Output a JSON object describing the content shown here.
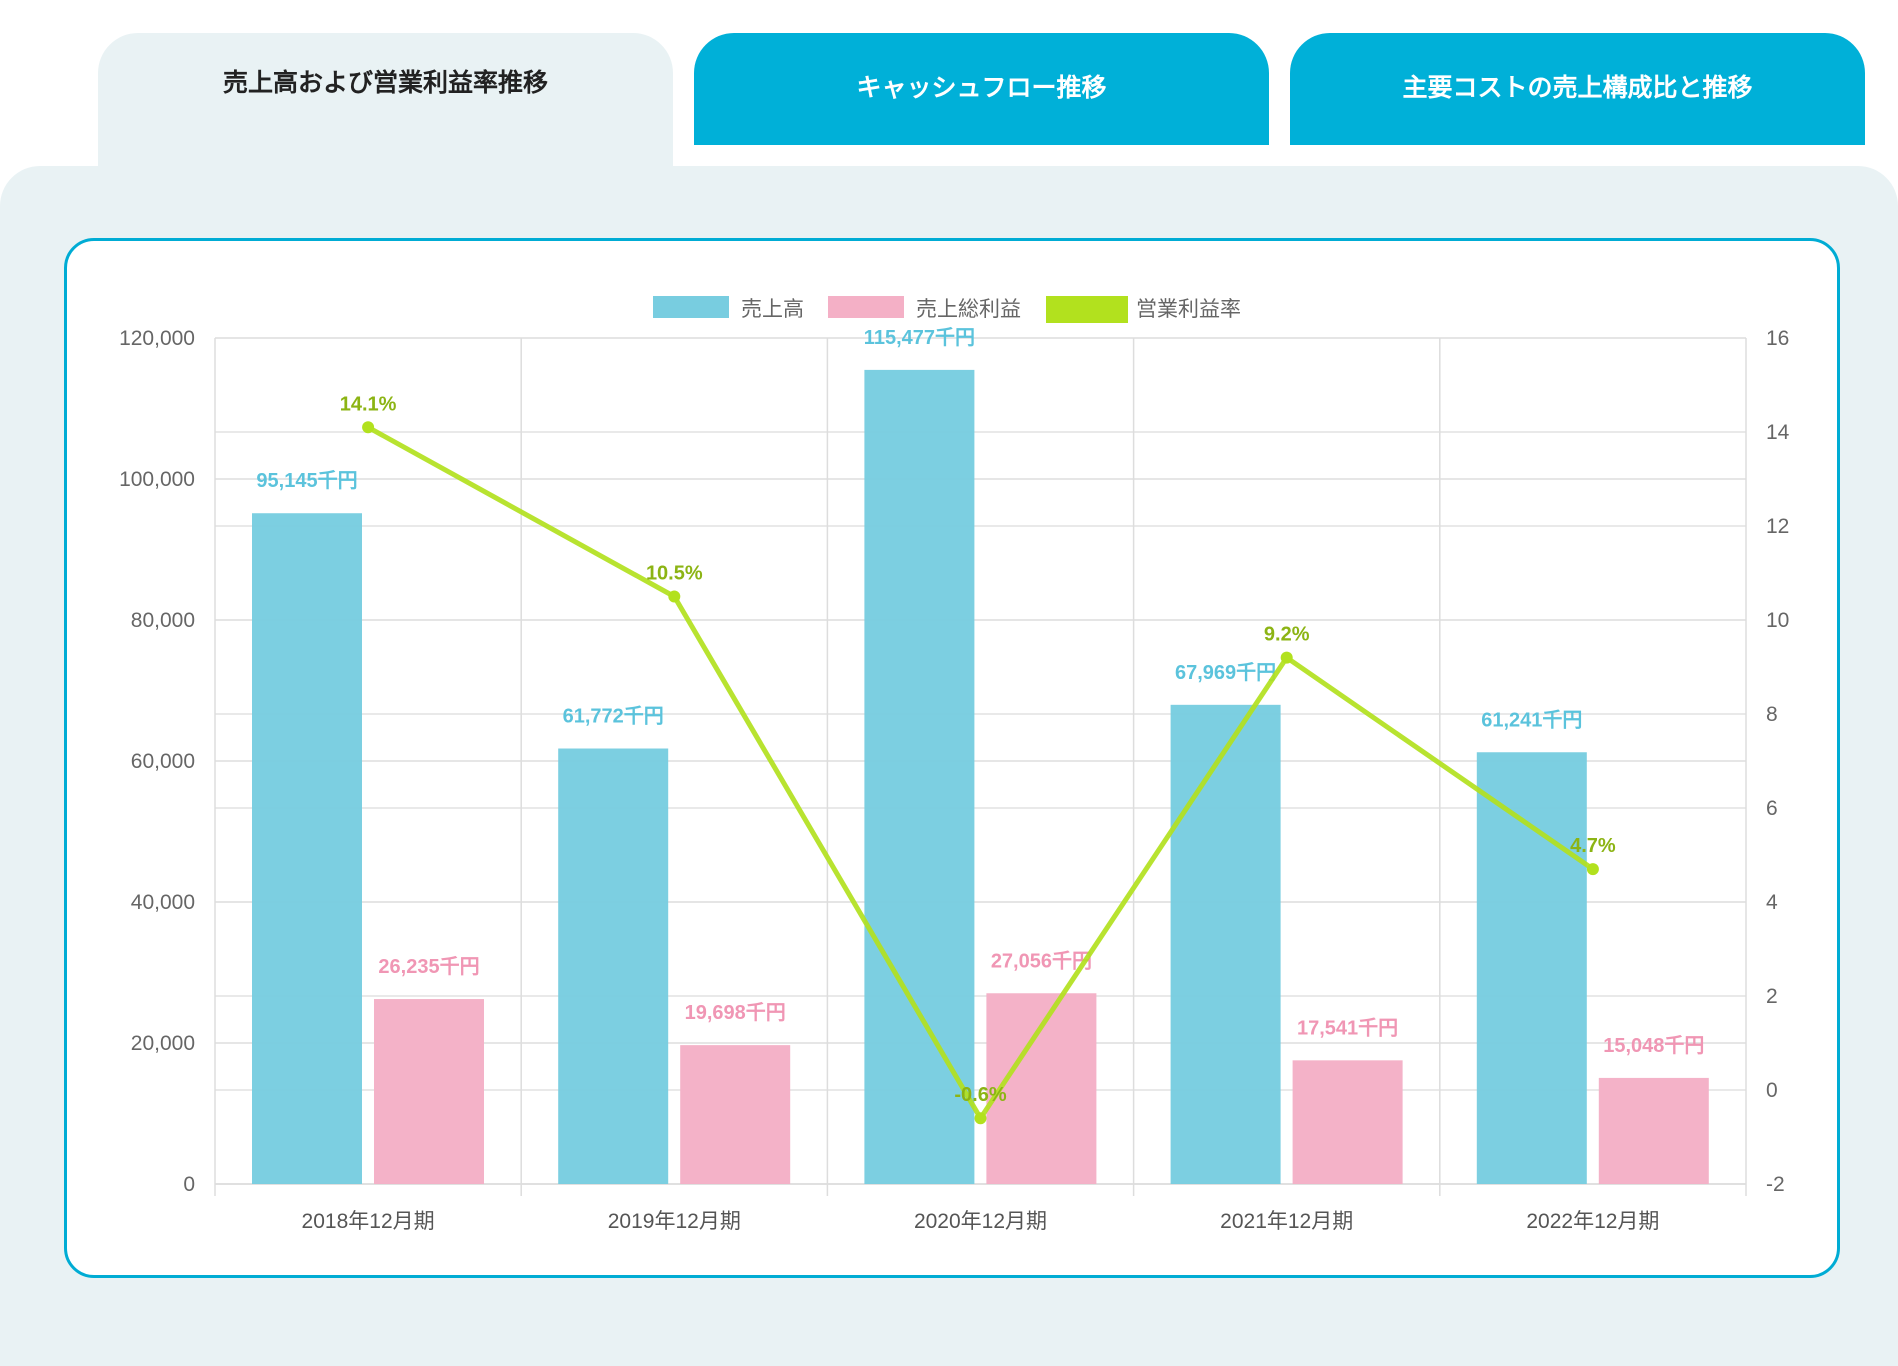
{
  "tabs": [
    {
      "label": "売上高および営業利益率推移",
      "active": true
    },
    {
      "label": "キャッシュフロー推移",
      "active": false
    },
    {
      "label": "主要コストの売上構成比と推移",
      "active": false
    }
  ],
  "chart_data": {
    "type": "bar",
    "categories": [
      "2018年12月期",
      "2019年12月期",
      "2020年12月期",
      "2021年12月期",
      "2022年12月期"
    ],
    "series": [
      {
        "name": "売上高",
        "type": "bar",
        "axis": "left",
        "color": "#78cde0",
        "values": [
          95145,
          61772,
          115477,
          67969,
          61241
        ],
        "labels": [
          "95,145千円",
          "61,772千円",
          "115,477千円",
          "67,969千円",
          "61,241千円"
        ],
        "label_color": "#5bc3dc"
      },
      {
        "name": "売上総利益",
        "type": "bar",
        "axis": "left",
        "color": "#f4b0c6",
        "values": [
          26235,
          19698,
          27056,
          17541,
          15048
        ],
        "labels": [
          "26,235千円",
          "19,698千円",
          "27,056千円",
          "17,541千円",
          "15,048千円"
        ],
        "label_color": "#f096b4"
      },
      {
        "name": "営業利益率",
        "type": "line",
        "axis": "right",
        "color": "#b2e11e",
        "values": [
          14.1,
          10.5,
          -0.6,
          9.2,
          4.7
        ],
        "labels": [
          "14.1%",
          "10.5%",
          "-0.6%",
          "9.2%",
          "4.7%"
        ],
        "label_color": "#8cb414"
      }
    ],
    "left_axis": {
      "min": 0,
      "max": 120000,
      "ticks": [
        "0",
        "20,000",
        "40,000",
        "60,000",
        "80,000",
        "100,000",
        "120,000"
      ]
    },
    "right_axis": {
      "min": -2,
      "max": 16,
      "ticks": [
        "-2",
        "0",
        "2",
        "4",
        "6",
        "8",
        "10",
        "12",
        "14",
        "16"
      ]
    },
    "legend": "top-center",
    "grid": true
  }
}
